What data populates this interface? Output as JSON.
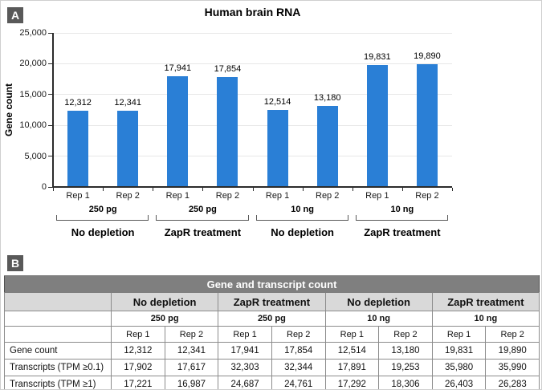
{
  "panelA": {
    "badge": "A"
  },
  "panelB": {
    "badge": "B",
    "table": {
      "title": "Gene and transcript count",
      "treatments": [
        "No depletion",
        "ZapR treatment",
        "No depletion",
        "ZapR treatment"
      ],
      "amounts": [
        "250 pg",
        "250 pg",
        "10 ng",
        "10 ng"
      ],
      "rep_headers": [
        "Rep 1",
        "Rep 2",
        "Rep 1",
        "Rep 2",
        "Rep 1",
        "Rep 2",
        "Rep 1",
        "Rep 2"
      ],
      "rows": [
        {
          "label": "Gene count",
          "values": [
            "12,312",
            "12,341",
            "17,941",
            "17,854",
            "12,514",
            "13,180",
            "19,831",
            "19,890"
          ]
        },
        {
          "label": "Transcripts (TPM ≥0.1)",
          "values": [
            "17,902",
            "17,617",
            "32,303",
            "32,344",
            "17,891",
            "19,253",
            "35,980",
            "35,990"
          ]
        },
        {
          "label": "Transcripts (TPM ≥1)",
          "values": [
            "17,221",
            "16,987",
            "24,687",
            "24,761",
            "17,292",
            "18,306",
            "26,403",
            "26,283"
          ]
        }
      ]
    }
  },
  "chart_data": {
    "type": "bar",
    "title": "Human brain RNA",
    "xlabel": "",
    "ylabel": "Gene count",
    "ylim": [
      0,
      25000
    ],
    "grid": true,
    "legend": "none",
    "bar_color": "#2a7fd6",
    "yticks": [
      {
        "value": 25000,
        "label": "25,000"
      },
      {
        "value": 20000,
        "label": "20,000"
      },
      {
        "value": 15000,
        "label": "15,000"
      },
      {
        "value": 10000,
        "label": "10,000"
      },
      {
        "value": 5000,
        "label": "5,000"
      },
      {
        "value": 0,
        "label": "0"
      }
    ],
    "groups": [
      {
        "treatment": "No depletion",
        "amount": "250 pg",
        "bars": [
          {
            "label": "Rep 1",
            "value": 12312,
            "display": "12,312"
          },
          {
            "label": "Rep 2",
            "value": 12341,
            "display": "12,341"
          }
        ]
      },
      {
        "treatment": "ZapR treatment",
        "amount": "250 pg",
        "bars": [
          {
            "label": "Rep 1",
            "value": 17941,
            "display": "17,941"
          },
          {
            "label": "Rep 2",
            "value": 17854,
            "display": "17,854"
          }
        ]
      },
      {
        "treatment": "No depletion",
        "amount": "10 ng",
        "bars": [
          {
            "label": "Rep 1",
            "value": 12514,
            "display": "12,514"
          },
          {
            "label": "Rep 2",
            "value": 13180,
            "display": "13,180"
          }
        ]
      },
      {
        "treatment": "ZapR treatment",
        "amount": "10 ng",
        "bars": [
          {
            "label": "Rep 1",
            "value": 19831,
            "display": "19,831"
          },
          {
            "label": "Rep 2",
            "value": 19890,
            "display": "19,890"
          }
        ]
      }
    ]
  }
}
